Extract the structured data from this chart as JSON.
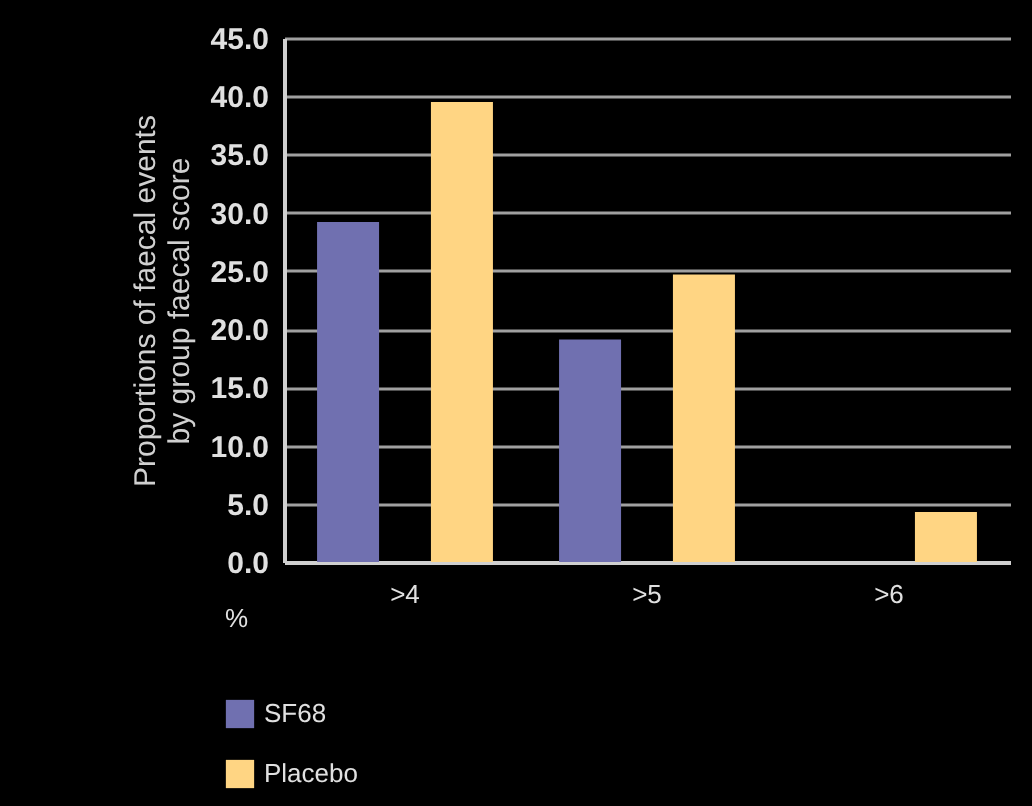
{
  "chart_data": {
    "type": "bar",
    "ylabel": "Proportions of faecal events\nby group faecal score",
    "xlabel": "%",
    "categories": [
      ">4",
      ">5",
      ">6"
    ],
    "series": [
      {
        "name": "SF68",
        "color": "#7070b0",
        "values": [
          29.2,
          19.1,
          0
        ]
      },
      {
        "name": "Placebo",
        "color": "#ffd583",
        "values": [
          39.5,
          24.7,
          4.3
        ]
      }
    ],
    "ylim": [
      0,
      45
    ],
    "yticks": [
      {
        "value": 0,
        "label": "0.0"
      },
      {
        "value": 5,
        "label": "5.0"
      },
      {
        "value": 10,
        "label": "10.0"
      },
      {
        "value": 15,
        "label": "15.0"
      },
      {
        "value": 20,
        "label": "20.0"
      },
      {
        "value": 25,
        "label": "25.0"
      },
      {
        "value": 30,
        "label": "30.0"
      },
      {
        "value": 35,
        "label": "35.0"
      },
      {
        "value": 40,
        "label": "40.0"
      },
      {
        "value": 45,
        "label": "45.0"
      }
    ],
    "grid": "y",
    "legend": "bottom left"
  }
}
